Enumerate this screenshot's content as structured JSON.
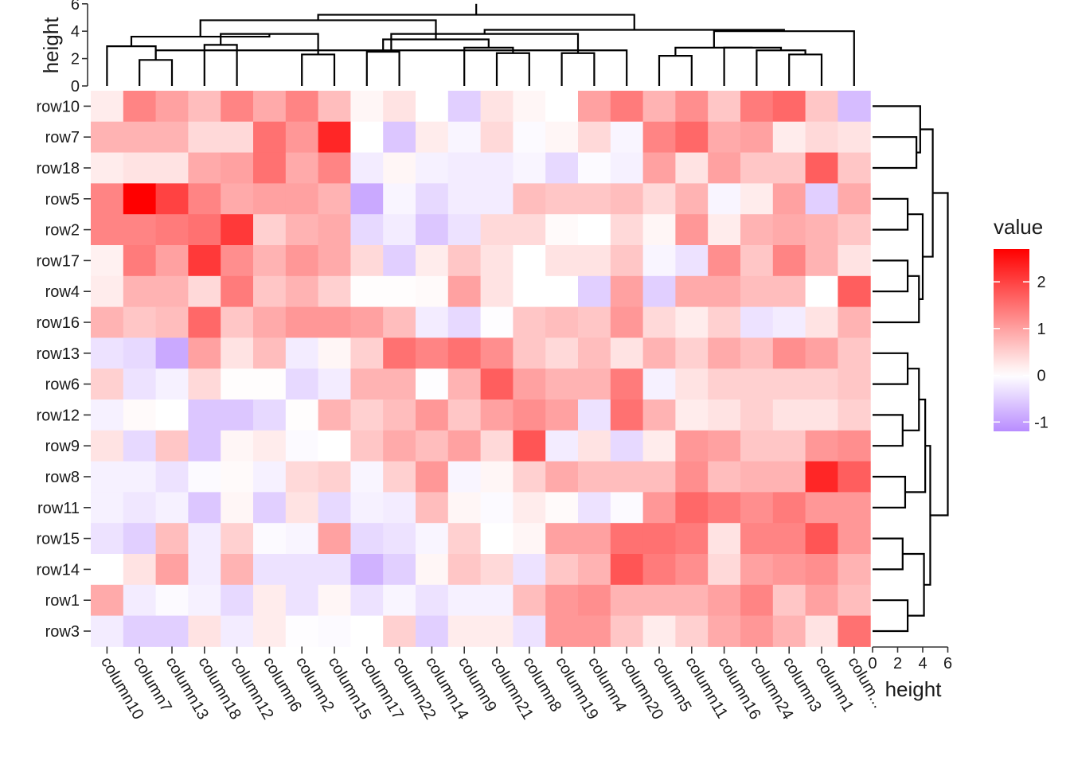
{
  "chart_data": {
    "type": "heatmap",
    "columns": [
      "column10",
      "column7",
      "column13",
      "column18",
      "column12",
      "column6",
      "column2",
      "column15",
      "column17",
      "column22",
      "column14",
      "column9",
      "column21",
      "column8",
      "column19",
      "column4",
      "column20",
      "column5",
      "column11",
      "column16",
      "column24",
      "column3",
      "column1",
      "colum..."
    ],
    "rows": [
      "row10",
      "row7",
      "row18",
      "row5",
      "row2",
      "row17",
      "row4",
      "row16",
      "row13",
      "row6",
      "row12",
      "row9",
      "row8",
      "row11",
      "row15",
      "row14",
      "row1",
      "row3"
    ],
    "values": [
      [
        0.2,
        1.3,
        1.0,
        0.7,
        1.3,
        0.9,
        1.3,
        0.7,
        0.1,
        0.3,
        0.0,
        -0.5,
        0.3,
        0.1,
        0.0,
        1.0,
        1.4,
        0.8,
        1.2,
        0.6,
        1.4,
        1.6,
        0.6,
        -0.7
      ],
      [
        0.8,
        0.8,
        0.8,
        0.4,
        0.4,
        1.5,
        1.1,
        2.3,
        0.0,
        -0.6,
        0.2,
        -0.1,
        0.4,
        -0.05,
        0.1,
        0.4,
        -0.1,
        1.3,
        1.6,
        0.9,
        1.0,
        0.2,
        0.4,
        0.3
      ],
      [
        0.2,
        0.3,
        0.3,
        0.9,
        1.0,
        1.5,
        0.9,
        1.3,
        -0.2,
        0.1,
        -0.15,
        -0.2,
        -0.2,
        -0.1,
        -0.4,
        -0.05,
        -0.15,
        1.0,
        0.3,
        1.0,
        0.6,
        0.6,
        1.7,
        0.6
      ],
      [
        1.3,
        2.7,
        2.0,
        1.3,
        0.9,
        1.0,
        1.0,
        0.8,
        -0.9,
        -0.1,
        -0.4,
        -0.2,
        -0.2,
        0.7,
        0.6,
        0.6,
        0.7,
        0.4,
        0.8,
        -0.1,
        0.2,
        1.0,
        -0.5,
        0.9
      ],
      [
        1.3,
        1.3,
        1.4,
        1.5,
        2.1,
        0.5,
        0.8,
        0.9,
        -0.4,
        -0.2,
        -0.6,
        -0.3,
        0.4,
        0.4,
        0.05,
        0.0,
        0.4,
        0.1,
        1.1,
        0.2,
        0.8,
        0.9,
        0.8,
        0.6
      ],
      [
        0.15,
        1.4,
        1.0,
        2.1,
        1.2,
        0.8,
        1.1,
        0.9,
        0.4,
        -0.5,
        0.2,
        0.6,
        0.3,
        0.0,
        0.3,
        0.3,
        0.6,
        -0.1,
        -0.3,
        1.2,
        0.6,
        1.3,
        0.8,
        0.3
      ],
      [
        0.2,
        0.8,
        0.8,
        0.4,
        1.4,
        0.6,
        0.8,
        0.5,
        0.02,
        0.02,
        0.05,
        1.0,
        0.3,
        0.0,
        0.0,
        -0.5,
        1.0,
        -0.5,
        0.9,
        0.9,
        0.7,
        0.7,
        0.0,
        1.7
      ],
      [
        0.8,
        0.6,
        0.7,
        1.6,
        0.6,
        0.9,
        1.1,
        1.1,
        1.0,
        0.7,
        -0.2,
        -0.4,
        -0.02,
        0.6,
        0.7,
        0.6,
        1.1,
        0.4,
        0.2,
        0.5,
        -0.3,
        -0.2,
        0.3,
        0.8
      ],
      [
        -0.3,
        -0.4,
        -0.9,
        1.0,
        0.3,
        0.7,
        -0.2,
        0.1,
        0.5,
        1.5,
        1.3,
        1.5,
        1.2,
        0.6,
        0.4,
        0.7,
        0.3,
        0.8,
        0.5,
        0.9,
        0.7,
        1.2,
        1.0,
        0.6
      ],
      [
        0.5,
        -0.3,
        -0.15,
        0.4,
        0.02,
        0.02,
        -0.4,
        -0.2,
        0.8,
        0.8,
        -0.02,
        0.8,
        1.7,
        1.0,
        0.8,
        0.8,
        1.4,
        -0.15,
        0.3,
        0.5,
        0.5,
        0.5,
        0.5,
        0.6
      ],
      [
        -0.15,
        0.05,
        0.0,
        -0.6,
        -0.6,
        -0.4,
        0.02,
        0.8,
        0.5,
        0.7,
        1.1,
        0.6,
        1.0,
        1.2,
        1.0,
        -0.3,
        1.5,
        0.8,
        0.2,
        0.3,
        0.5,
        0.3,
        0.3,
        0.5
      ],
      [
        0.3,
        -0.4,
        0.6,
        -0.6,
        0.1,
        0.2,
        -0.05,
        0.0,
        0.6,
        0.9,
        0.7,
        1.0,
        0.4,
        1.8,
        -0.2,
        0.3,
        -0.4,
        0.2,
        1.1,
        1.0,
        0.6,
        0.6,
        1.1,
        1.2
      ],
      [
        -0.15,
        -0.15,
        -0.3,
        -0.05,
        0.05,
        -0.15,
        0.4,
        0.5,
        -0.1,
        0.5,
        1.1,
        -0.1,
        0.1,
        0.5,
        0.9,
        0.7,
        0.7,
        0.7,
        1.2,
        0.7,
        0.8,
        0.8,
        2.3,
        1.7
      ],
      [
        -0.15,
        -0.25,
        -0.15,
        -0.6,
        0.1,
        -0.5,
        0.3,
        -0.4,
        -0.15,
        -0.2,
        0.7,
        0.1,
        -0.05,
        0.2,
        0.05,
        -0.3,
        -0.05,
        1.1,
        1.6,
        1.4,
        1.2,
        1.4,
        1.1,
        1.1
      ],
      [
        -0.3,
        -0.5,
        0.7,
        -0.2,
        0.5,
        -0.05,
        -0.1,
        1.0,
        -0.4,
        -0.3,
        -0.1,
        0.5,
        0.0,
        0.1,
        1.0,
        1.0,
        1.5,
        1.5,
        1.4,
        0.3,
        1.3,
        1.3,
        1.8,
        1.1
      ],
      [
        0.0,
        0.3,
        1.0,
        -0.2,
        0.8,
        -0.3,
        -0.3,
        -0.3,
        -0.8,
        -0.5,
        0.1,
        0.6,
        0.4,
        -0.3,
        0.6,
        0.8,
        1.8,
        1.4,
        1.2,
        0.4,
        1.0,
        1.1,
        1.2,
        0.8
      ],
      [
        0.9,
        -0.2,
        -0.05,
        -0.15,
        -0.4,
        0.2,
        -0.3,
        0.1,
        -0.3,
        -0.1,
        -0.3,
        -0.15,
        -0.15,
        0.7,
        1.1,
        1.2,
        0.8,
        0.8,
        0.8,
        1.0,
        1.3,
        0.6,
        1.0,
        0.7
      ],
      [
        -0.2,
        -0.5,
        -0.5,
        0.3,
        -0.2,
        0.2,
        -0.02,
        -0.05,
        0.0,
        0.5,
        -0.5,
        0.2,
        0.2,
        -0.3,
        1.1,
        1.1,
        0.6,
        0.2,
        0.5,
        0.9,
        1.1,
        0.8,
        0.3,
        1.5
      ]
    ],
    "color_scale": {
      "low": "#b88cff",
      "mid": "#ffffff",
      "high": "#ff0000",
      "low_value": -1.2,
      "mid_value": 0,
      "high_value": 2.7
    },
    "legend": {
      "title": "value",
      "ticks": [
        2,
        1,
        0,
        -1
      ],
      "position": "right",
      "range": [
        -1.2,
        2.7
      ]
    },
    "top_dendrogram": {
      "axis_title": "height",
      "ticks": [
        0,
        2,
        4,
        6
      ],
      "ylim": [
        0,
        6
      ],
      "merges": [
        [
          -2,
          -3,
          1.9
        ],
        [
          -15,
          -16,
          2.4
        ],
        [
          -22,
          -23,
          2.3
        ],
        [
          -18,
          -19,
          2.2
        ],
        [
          -4,
          -5,
          3.0
        ],
        [
          -7,
          -8,
          2.3
        ],
        [
          -9,
          -10,
          2.5
        ],
        [
          -13,
          -14,
          2.4
        ],
        [
          -12,
          8,
          2.8
        ],
        [
          -21,
          3,
          2.6
        ],
        [
          -20,
          10,
          2.8
        ],
        [
          -17,
          1,
          2.6
        ],
        [
          4,
          11,
          2.8
        ],
        [
          -24,
          13,
          4.0
        ],
        [
          -1,
          1,
          2.9
        ],
        [
          5,
          6,
          3.8
        ],
        [
          15,
          16,
          3.6
        ],
        [
          7,
          9,
          3.4
        ],
        [
          2,
          12,
          3.8
        ],
        [
          19,
          14,
          4.1
        ],
        [
          17,
          18,
          4.8
        ],
        [
          21,
          20,
          5.2
        ],
        [
          22,
          23,
          6.0
        ]
      ]
    },
    "right_dendrogram": {
      "axis_title": "height",
      "ticks": [
        0,
        2,
        4,
        6
      ],
      "xlim": [
        0,
        6
      ],
      "merges": [
        [
          -2,
          -3,
          3.5
        ],
        [
          -1,
          1,
          3.8
        ],
        [
          -4,
          -5,
          2.8
        ],
        [
          -6,
          -7,
          2.8
        ],
        [
          4,
          -8,
          3.7
        ],
        [
          3,
          5,
          4.0
        ],
        [
          2,
          6,
          4.8
        ],
        [
          -9,
          -10,
          2.8
        ],
        [
          -11,
          -12,
          2.4
        ],
        [
          8,
          9,
          3.7
        ],
        [
          -13,
          -14,
          2.6
        ],
        [
          10,
          11,
          4.2
        ],
        [
          -15,
          -16,
          2.4
        ],
        [
          -17,
          -18,
          2.8
        ],
        [
          13,
          14,
          4.1
        ],
        [
          12,
          15,
          4.6
        ],
        [
          7,
          16,
          6.0
        ]
      ]
    }
  }
}
